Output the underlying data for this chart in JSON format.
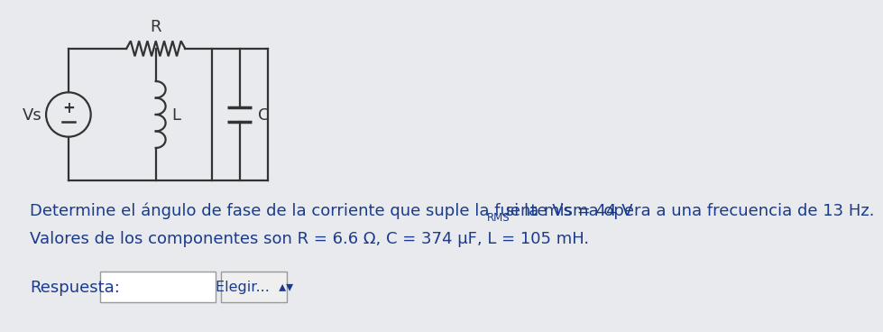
{
  "bg_color": "#e8eaed",
  "circuit": {
    "vs_label": "Vs",
    "r_label": "R",
    "l_label": "L",
    "c_label": "C"
  },
  "text1_part1": "Determine el ángulo de fase de la corriente que suple la fuente Vs = 44 V",
  "text1_rms": "RMS",
  "text1_part2": " si la misma opera a una frecuencia de 13 Hz.",
  "text2": "Valores de los componentes son R = 6.6 Ω, C = 374 μF, L = 105 mH.",
  "respuesta_label": "Respuesta:",
  "elegir_label": "Elegir...  ▴▾",
  "text_color": "#1a3a8c",
  "circuit_color": "#333333",
  "lw": 1.6
}
